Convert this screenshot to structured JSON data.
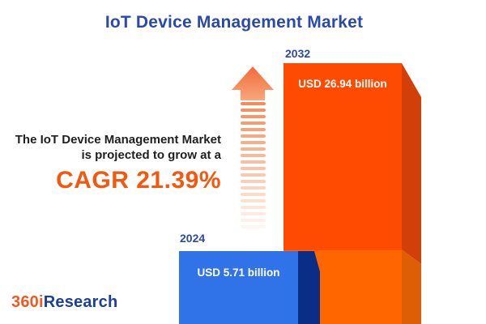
{
  "header": {
    "title": "IoT Device Management Market"
  },
  "intro": {
    "line1": "The IoT Device Management Market",
    "line2": "is projected to grow at a",
    "cagr_label": "CAGR 21.39%"
  },
  "chart_data": {
    "type": "bar",
    "title": "IoT Device Management Market",
    "unit": "USD billion",
    "categories": [
      "2024",
      "2032"
    ],
    "values": [
      5.71,
      26.94
    ],
    "labels": [
      "USD 5.71 billion",
      "USD 26.94 billion"
    ],
    "cagr_percent": 21.39,
    "legend": "none",
    "grid": false,
    "orientation": "vertical",
    "bar_colors": {
      "2024_front": "#3073E8",
      "2024_side": "#0A2E85",
      "2032_front_top": "#FF4A02",
      "2032_front_bottom": "#FF6600",
      "2032_side_top": "#D23F08",
      "2032_side_bottom": "#DD5E04"
    }
  },
  "arrow": {
    "meaning": "growth-up-arrow",
    "color": "#F28752"
  },
  "colors": {
    "title_blue": "#2B49A8",
    "text_dark": "#1F1F1F",
    "accent_orange": "#F4570E",
    "logo_orange": "#F05A22",
    "logo_blue": "#1B3F9B",
    "background": "#FFFFFF"
  },
  "logo": {
    "prefix": "360i",
    "suffix": "Research"
  }
}
